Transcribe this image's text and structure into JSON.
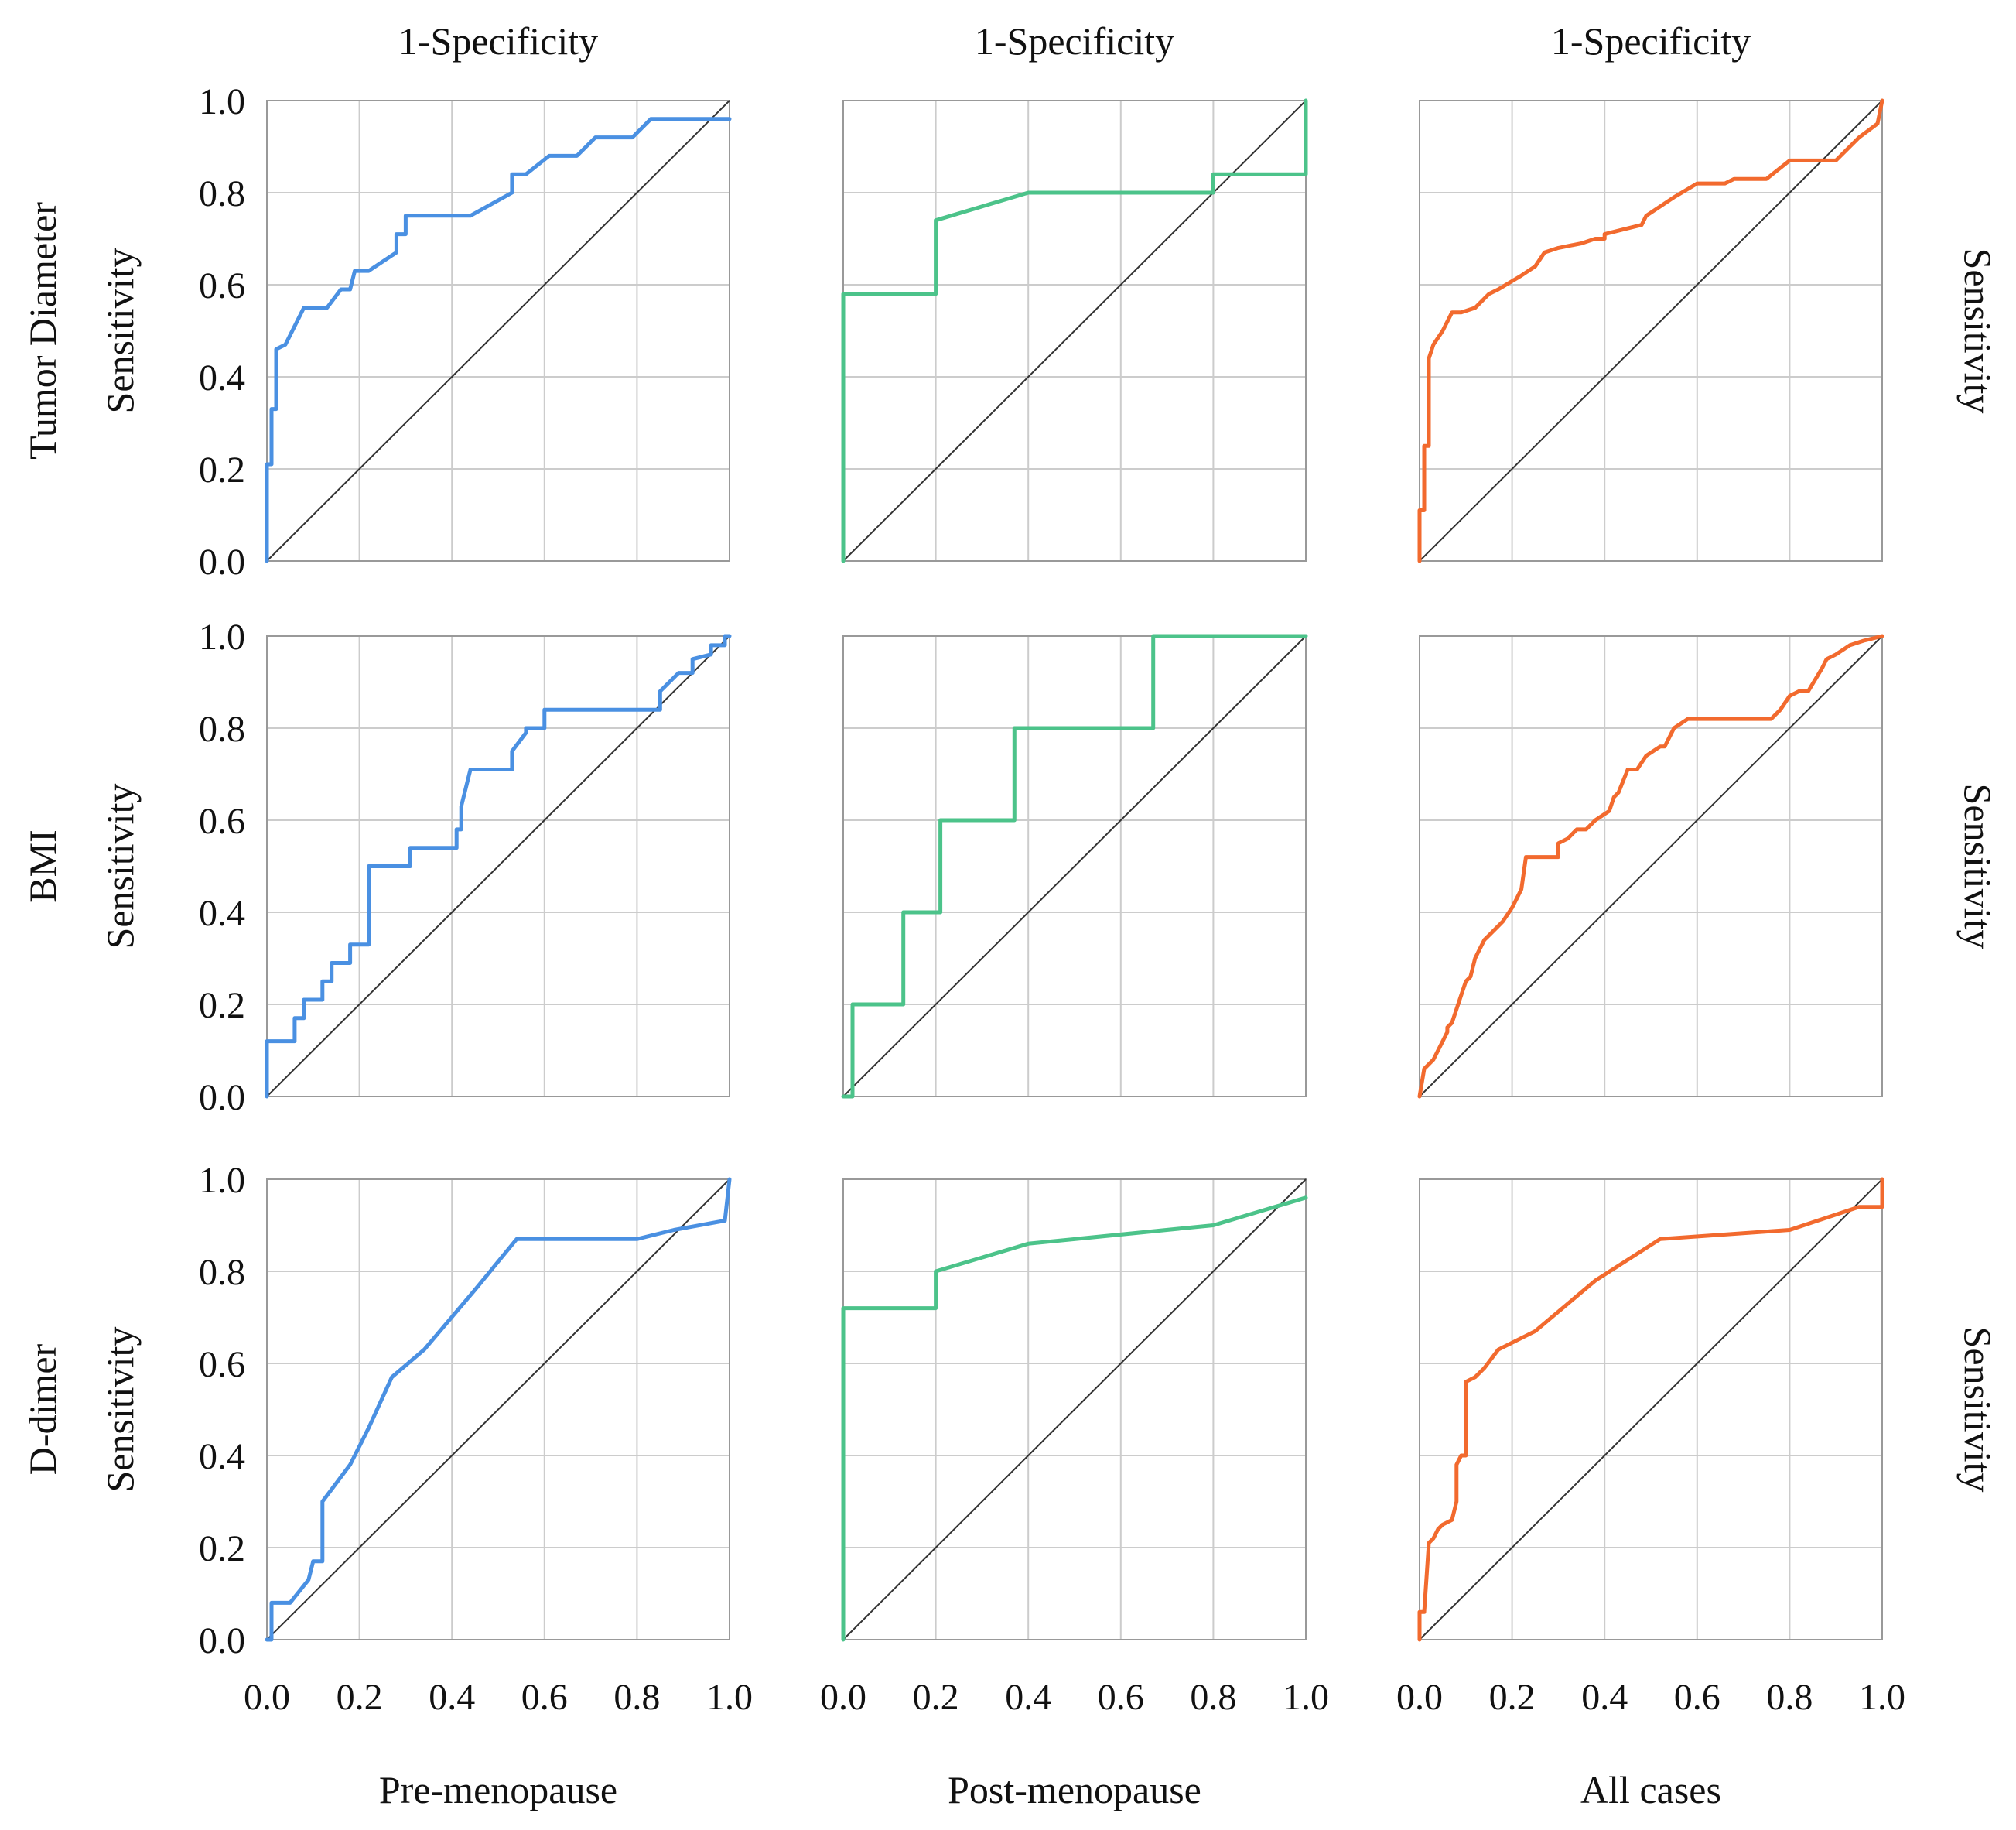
{
  "figure": {
    "top_label": "1-Specificity",
    "side_label": "Sensitivity",
    "row_labels": [
      "Tumor Diameter",
      "BMI",
      "D-dimer"
    ],
    "column_labels": [
      "Pre-menopause",
      "Post-menopause",
      "All cases"
    ],
    "tick_labels": [
      "0.0",
      "0.2",
      "0.4",
      "0.6",
      "0.8",
      "1.0"
    ],
    "series_colors": {
      "Pre-menopause": "#4a90e2",
      "Post-menopause": "#4cc38a",
      "All cases": "#f26a2e"
    },
    "reference_color": "#333333"
  },
  "chart_data": [
    {
      "type": "line",
      "row": "Tumor Diameter",
      "group": "Pre-menopause",
      "xlabel": "1-Specificity",
      "ylabel": "Sensitivity",
      "xlim": [
        0,
        1
      ],
      "ylim": [
        0,
        1
      ],
      "grid": true,
      "x": [
        0,
        0,
        0.01,
        0.01,
        0.02,
        0.02,
        0.04,
        0.08,
        0.13,
        0.16,
        0.18,
        0.19,
        0.22,
        0.28,
        0.28,
        0.3,
        0.3,
        0.32,
        0.44,
        0.53,
        0.53,
        0.56,
        0.61,
        0.67,
        0.71,
        0.79,
        0.83,
        0.87,
        0.99,
        1.0
      ],
      "y": [
        0,
        0.21,
        0.21,
        0.33,
        0.33,
        0.46,
        0.47,
        0.55,
        0.55,
        0.59,
        0.59,
        0.63,
        0.63,
        0.67,
        0.71,
        0.71,
        0.75,
        0.75,
        0.75,
        0.8,
        0.84,
        0.84,
        0.88,
        0.88,
        0.92,
        0.92,
        0.96,
        0.96,
        0.96,
        0.96
      ]
    },
    {
      "type": "line",
      "row": "Tumor Diameter",
      "group": "Post-menopause",
      "xlabel": "1-Specificity",
      "ylabel": "Sensitivity",
      "xlim": [
        0,
        1
      ],
      "ylim": [
        0,
        1
      ],
      "grid": true,
      "x": [
        0,
        0,
        0.2,
        0.2,
        0.4,
        0.8,
        0.8,
        1.0,
        1.0
      ],
      "y": [
        0,
        0.58,
        0.58,
        0.74,
        0.8,
        0.8,
        0.84,
        0.84,
        1.0
      ]
    },
    {
      "type": "line",
      "row": "Tumor Diameter",
      "group": "All cases",
      "xlabel": "1-Specificity",
      "ylabel": "Sensitivity",
      "xlim": [
        0,
        1
      ],
      "ylim": [
        0,
        1
      ],
      "grid": true,
      "x": [
        0,
        0,
        0.01,
        0.01,
        0.02,
        0.02,
        0.03,
        0.05,
        0.07,
        0.09,
        0.12,
        0.15,
        0.17,
        0.22,
        0.25,
        0.27,
        0.3,
        0.35,
        0.38,
        0.4,
        0.4,
        0.44,
        0.48,
        0.49,
        0.55,
        0.6,
        0.66,
        0.68,
        0.75,
        0.8,
        0.9,
        0.95,
        0.99,
        1.0
      ],
      "y": [
        0,
        0.11,
        0.11,
        0.25,
        0.25,
        0.44,
        0.47,
        0.5,
        0.54,
        0.54,
        0.55,
        0.58,
        0.59,
        0.62,
        0.64,
        0.67,
        0.68,
        0.69,
        0.7,
        0.7,
        0.71,
        0.72,
        0.73,
        0.75,
        0.79,
        0.82,
        0.82,
        0.83,
        0.83,
        0.87,
        0.87,
        0.92,
        0.95,
        1.0
      ]
    },
    {
      "type": "line",
      "row": "BMI",
      "group": "Pre-menopause",
      "xlabel": "1-Specificity",
      "ylabel": "Sensitivity",
      "xlim": [
        0,
        1
      ],
      "ylim": [
        0,
        1
      ],
      "grid": true,
      "x": [
        0,
        0,
        0.06,
        0.06,
        0.08,
        0.08,
        0.12,
        0.12,
        0.14,
        0.14,
        0.18,
        0.18,
        0.22,
        0.22,
        0.31,
        0.31,
        0.41,
        0.41,
        0.42,
        0.42,
        0.44,
        0.53,
        0.53,
        0.56,
        0.56,
        0.6,
        0.6,
        0.85,
        0.85,
        0.89,
        0.92,
        0.92,
        0.96,
        0.96,
        0.99,
        0.99,
        1.0
      ],
      "y": [
        0,
        0.12,
        0.12,
        0.17,
        0.17,
        0.21,
        0.21,
        0.25,
        0.25,
        0.29,
        0.29,
        0.33,
        0.33,
        0.5,
        0.5,
        0.54,
        0.54,
        0.58,
        0.58,
        0.63,
        0.71,
        0.71,
        0.75,
        0.79,
        0.8,
        0.8,
        0.84,
        0.84,
        0.88,
        0.92,
        0.92,
        0.95,
        0.96,
        0.98,
        0.98,
        1.0,
        1.0
      ]
    },
    {
      "type": "line",
      "row": "BMI",
      "group": "Post-menopause",
      "xlabel": "1-Specificity",
      "ylabel": "Sensitivity",
      "xlim": [
        0,
        1
      ],
      "ylim": [
        0,
        1
      ],
      "grid": true,
      "x": [
        0,
        0.02,
        0.02,
        0.13,
        0.13,
        0.21,
        0.21,
        0.37,
        0.37,
        0.67,
        0.67,
        1.0
      ],
      "y": [
        0,
        0,
        0.2,
        0.2,
        0.4,
        0.4,
        0.6,
        0.6,
        0.8,
        0.8,
        1.0,
        1.0
      ]
    },
    {
      "type": "line",
      "row": "BMI",
      "group": "All cases",
      "xlabel": "1-Specificity",
      "ylabel": "Sensitivity",
      "xlim": [
        0,
        1
      ],
      "ylim": [
        0,
        1
      ],
      "grid": true,
      "x": [
        0,
        0.01,
        0.01,
        0.03,
        0.04,
        0.06,
        0.06,
        0.07,
        0.09,
        0.1,
        0.11,
        0.12,
        0.13,
        0.14,
        0.15,
        0.17,
        0.18,
        0.2,
        0.21,
        0.22,
        0.23,
        0.25,
        0.3,
        0.3,
        0.32,
        0.34,
        0.36,
        0.38,
        0.41,
        0.42,
        0.43,
        0.45,
        0.47,
        0.49,
        0.52,
        0.53,
        0.55,
        0.58,
        0.76,
        0.78,
        0.8,
        0.82,
        0.84,
        0.87,
        0.88,
        0.9,
        0.93,
        0.96,
        1.0
      ],
      "y": [
        0,
        0.06,
        0.06,
        0.08,
        0.1,
        0.14,
        0.15,
        0.16,
        0.22,
        0.25,
        0.26,
        0.3,
        0.32,
        0.34,
        0.35,
        0.37,
        0.38,
        0.41,
        0.43,
        0.45,
        0.52,
        0.52,
        0.52,
        0.55,
        0.56,
        0.58,
        0.58,
        0.6,
        0.62,
        0.65,
        0.66,
        0.71,
        0.71,
        0.74,
        0.76,
        0.76,
        0.8,
        0.82,
        0.82,
        0.84,
        0.87,
        0.88,
        0.88,
        0.93,
        0.95,
        0.96,
        0.98,
        0.99,
        1.0
      ]
    },
    {
      "type": "line",
      "row": "D-dimer",
      "group": "Pre-menopause",
      "xlabel": "1-Specificity",
      "ylabel": "Sensitivity",
      "xlim": [
        0,
        1
      ],
      "ylim": [
        0,
        1
      ],
      "grid": true,
      "x": [
        0,
        0.01,
        0.01,
        0.05,
        0.09,
        0.1,
        0.12,
        0.12,
        0.15,
        0.18,
        0.2,
        0.22,
        0.27,
        0.34,
        0.45,
        0.54,
        0.62,
        0.8,
        0.88,
        0.99,
        1.0
      ],
      "y": [
        0,
        0,
        0.08,
        0.08,
        0.13,
        0.17,
        0.17,
        0.3,
        0.34,
        0.38,
        0.42,
        0.46,
        0.57,
        0.63,
        0.76,
        0.87,
        0.87,
        0.87,
        0.89,
        0.91,
        1.0
      ]
    },
    {
      "type": "line",
      "row": "D-dimer",
      "group": "Post-menopause",
      "xlabel": "1-Specificity",
      "ylabel": "Sensitivity",
      "xlim": [
        0,
        1
      ],
      "ylim": [
        0,
        1
      ],
      "grid": true,
      "x": [
        0,
        0,
        0.2,
        0.2,
        0.4,
        0.8,
        1.0
      ],
      "y": [
        0,
        0.72,
        0.72,
        0.8,
        0.86,
        0.9,
        0.96
      ]
    },
    {
      "type": "line",
      "row": "D-dimer",
      "group": "All cases",
      "xlabel": "1-Specificity",
      "ylabel": "Sensitivity",
      "xlim": [
        0,
        1
      ],
      "ylim": [
        0,
        1
      ],
      "grid": true,
      "x": [
        0,
        0,
        0.01,
        0.02,
        0.03,
        0.04,
        0.05,
        0.07,
        0.08,
        0.08,
        0.09,
        0.1,
        0.1,
        0.12,
        0.14,
        0.17,
        0.25,
        0.38,
        0.52,
        0.8,
        0.95,
        1.0,
        1.0
      ],
      "y": [
        0,
        0.06,
        0.06,
        0.21,
        0.22,
        0.24,
        0.25,
        0.26,
        0.3,
        0.38,
        0.4,
        0.4,
        0.56,
        0.57,
        0.59,
        0.63,
        0.67,
        0.78,
        0.87,
        0.89,
        0.94,
        0.94,
        1.0
      ]
    }
  ]
}
